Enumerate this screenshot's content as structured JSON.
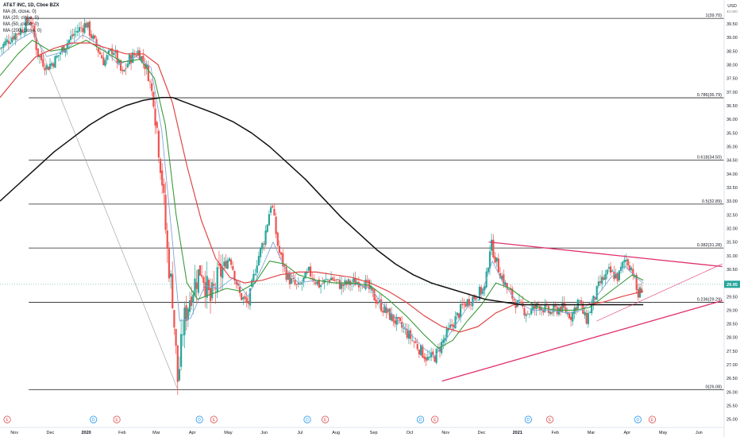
{
  "legend": {
    "title": "AT&T INC, 1D, Cboe BZX",
    "ma8": "MA (8, close, 0)",
    "ma20": "MA (20, close, 0)",
    "ma50": "MA (50, close, 0)",
    "ma200": "MA (200, close, 0)"
  },
  "axis": {
    "currency": "USD",
    "top_value": "40.000",
    "last_price": "29.95"
  },
  "colors": {
    "up": "#26a69a",
    "down": "#ef5350",
    "ma8": "#7fa6d9",
    "ma20": "#3a9a3a",
    "ma50": "#e04545",
    "ma200": "#111111",
    "triangle": "#e0306e",
    "fib": "#222222",
    "last_price_bg": "#26a69a"
  },
  "chart_data": {
    "type": "line",
    "title": "AT&T INC, 1D, Cboe BZX",
    "ylim": [
      24.7,
      40.2
    ],
    "y_ticks": [
      25.0,
      25.5,
      26.0,
      26.5,
      27.0,
      27.5,
      28.0,
      28.5,
      29.0,
      29.5,
      30.0,
      30.5,
      31.0,
      31.5,
      32.0,
      32.5,
      33.0,
      33.5,
      34.0,
      34.5,
      35.0,
      35.5,
      36.0,
      36.5,
      37.0,
      37.5,
      38.0,
      38.5,
      39.0,
      39.5,
      40.0
    ],
    "x_ticks": [
      {
        "label": "Nov",
        "x": 0.4
      },
      {
        "label": "Dec",
        "x": 1.4
      },
      {
        "label": "2020",
        "x": 2.4
      },
      {
        "label": "Feb",
        "x": 3.4
      },
      {
        "label": "Mar",
        "x": 4.35
      },
      {
        "label": "Apr",
        "x": 5.35
      },
      {
        "label": "May",
        "x": 6.35
      },
      {
        "label": "Jun",
        "x": 7.35
      },
      {
        "label": "Jul",
        "x": 8.35
      },
      {
        "label": "Aug",
        "x": 9.35
      },
      {
        "label": "Sep",
        "x": 10.4
      },
      {
        "label": "Oct",
        "x": 11.4
      },
      {
        "label": "Nov",
        "x": 12.4
      },
      {
        "label": "Dec",
        "x": 13.4
      },
      {
        "label": "2021",
        "x": 14.4
      },
      {
        "label": "Feb",
        "x": 15.45
      },
      {
        "label": "Mar",
        "x": 16.45
      },
      {
        "label": "Apr",
        "x": 17.45
      },
      {
        "label": "May",
        "x": 18.45
      },
      {
        "label": "Jun",
        "x": 19.45
      }
    ],
    "xlim": [
      0,
      20.15
    ],
    "fib_levels": [
      {
        "ratio": "1",
        "value": 39.7,
        "label": "1(39.70)"
      },
      {
        "ratio": "0.786",
        "value": 36.79,
        "label": "0.786(36.79)"
      },
      {
        "ratio": "0.618",
        "value": 34.5,
        "label": "0.618(34.50)"
      },
      {
        "ratio": "0.5",
        "value": 32.89,
        "label": "0.5(32.89)"
      },
      {
        "ratio": "0.382",
        "value": 31.28,
        "label": "0.382(31.28)"
      },
      {
        "ratio": "0.236",
        "value": 29.29,
        "label": "0.236(29.29)"
      },
      {
        "ratio": "0",
        "value": 26.08,
        "label": "0(26.08)"
      }
    ],
    "price_path": [
      [
        0.0,
        38.6
      ],
      [
        0.3,
        39.0
      ],
      [
        0.6,
        39.3
      ],
      [
        0.85,
        39.7
      ],
      [
        1.05,
        38.4
      ],
      [
        1.3,
        37.9
      ],
      [
        1.55,
        38.2
      ],
      [
        1.8,
        38.7
      ],
      [
        2.1,
        39.2
      ],
      [
        2.4,
        39.5
      ],
      [
        2.6,
        38.9
      ],
      [
        2.9,
        38.1
      ],
      [
        3.15,
        38.6
      ],
      [
        3.4,
        37.6
      ],
      [
        3.6,
        38.2
      ],
      [
        3.85,
        38.5
      ],
      [
        4.1,
        37.8
      ],
      [
        4.3,
        36.5
      ],
      [
        4.5,
        34.0
      ],
      [
        4.65,
        31.2
      ],
      [
        4.8,
        29.5
      ],
      [
        4.95,
        26.3
      ],
      [
        5.1,
        28.5
      ],
      [
        5.3,
        29.6
      ],
      [
        5.6,
        30.6
      ],
      [
        5.85,
        29.3
      ],
      [
        6.1,
        30.3
      ],
      [
        6.4,
        31.0
      ],
      [
        6.65,
        29.6
      ],
      [
        6.9,
        29.2
      ],
      [
        7.15,
        30.8
      ],
      [
        7.35,
        31.6
      ],
      [
        7.55,
        33.0
      ],
      [
        7.75,
        31.2
      ],
      [
        8.0,
        30.2
      ],
      [
        8.3,
        29.8
      ],
      [
        8.6,
        30.4
      ],
      [
        8.9,
        29.9
      ],
      [
        9.2,
        30.2
      ],
      [
        9.5,
        29.9
      ],
      [
        9.8,
        30.0
      ],
      [
        10.1,
        30.1
      ],
      [
        10.4,
        29.5
      ],
      [
        10.7,
        29.0
      ],
      [
        11.0,
        28.6
      ],
      [
        11.3,
        28.2
      ],
      [
        11.6,
        27.7
      ],
      [
        11.9,
        27.2
      ],
      [
        12.1,
        27.3
      ],
      [
        12.3,
        27.8
      ],
      [
        12.6,
        28.5
      ],
      [
        12.9,
        29.2
      ],
      [
        13.2,
        29.5
      ],
      [
        13.5,
        29.8
      ],
      [
        13.65,
        31.5
      ],
      [
        13.85,
        30.6
      ],
      [
        14.1,
        29.8
      ],
      [
        14.4,
        29.2
      ],
      [
        14.7,
        28.9
      ],
      [
        15.0,
        29.2
      ],
      [
        15.3,
        28.9
      ],
      [
        15.6,
        29.1
      ],
      [
        15.9,
        28.8
      ],
      [
        16.1,
        29.4
      ],
      [
        16.3,
        28.6
      ],
      [
        16.5,
        29.3
      ],
      [
        16.7,
        30.0
      ],
      [
        16.95,
        30.4
      ],
      [
        17.2,
        30.2
      ],
      [
        17.4,
        30.9
      ],
      [
        17.6,
        30.5
      ],
      [
        17.75,
        29.5
      ],
      [
        17.9,
        29.95
      ]
    ],
    "series": [
      {
        "name": "MA (8, close, 0)",
        "values": [
          [
            0,
            38.3
          ],
          [
            0.5,
            38.9
          ],
          [
            0.9,
            39.2
          ],
          [
            1.3,
            38.3
          ],
          [
            1.8,
            38.5
          ],
          [
            2.3,
            39.1
          ],
          [
            2.8,
            38.7
          ],
          [
            3.3,
            38.0
          ],
          [
            3.8,
            38.3
          ],
          [
            4.2,
            37.9
          ],
          [
            4.5,
            35.6
          ],
          [
            4.8,
            31.5
          ],
          [
            5.0,
            28.6
          ],
          [
            5.3,
            28.7
          ],
          [
            5.7,
            29.9
          ],
          [
            6.1,
            29.8
          ],
          [
            6.5,
            30.2
          ],
          [
            6.9,
            29.5
          ],
          [
            7.3,
            30.6
          ],
          [
            7.6,
            31.5
          ],
          [
            7.9,
            30.6
          ],
          [
            8.3,
            30.0
          ],
          [
            8.8,
            30.1
          ],
          [
            9.3,
            30.0
          ],
          [
            9.8,
            30.0
          ],
          [
            10.3,
            29.8
          ],
          [
            10.8,
            29.0
          ],
          [
            11.3,
            28.3
          ],
          [
            11.8,
            27.6
          ],
          [
            12.1,
            27.3
          ],
          [
            12.5,
            28.1
          ],
          [
            13.0,
            29.1
          ],
          [
            13.4,
            29.6
          ],
          [
            13.7,
            30.8
          ],
          [
            14.0,
            30.0
          ],
          [
            14.4,
            29.3
          ],
          [
            14.8,
            29.0
          ],
          [
            15.3,
            29.0
          ],
          [
            15.8,
            28.9
          ],
          [
            16.2,
            29.0
          ],
          [
            16.6,
            29.5
          ],
          [
            17.0,
            30.2
          ],
          [
            17.4,
            30.6
          ],
          [
            17.7,
            30.2
          ],
          [
            17.9,
            30.0
          ]
        ]
      },
      {
        "name": "MA (20, close, 0)",
        "values": [
          [
            0,
            37.6
          ],
          [
            0.5,
            38.4
          ],
          [
            0.9,
            38.9
          ],
          [
            1.4,
            38.5
          ],
          [
            1.9,
            38.6
          ],
          [
            2.4,
            38.9
          ],
          [
            2.9,
            38.5
          ],
          [
            3.4,
            38.1
          ],
          [
            3.9,
            38.2
          ],
          [
            4.3,
            37.5
          ],
          [
            4.6,
            35.8
          ],
          [
            4.9,
            32.5
          ],
          [
            5.2,
            30.0
          ],
          [
            5.5,
            29.4
          ],
          [
            5.9,
            29.6
          ],
          [
            6.3,
            29.8
          ],
          [
            6.7,
            29.7
          ],
          [
            7.1,
            30.0
          ],
          [
            7.5,
            30.8
          ],
          [
            7.9,
            30.7
          ],
          [
            8.3,
            30.3
          ],
          [
            8.8,
            30.1
          ],
          [
            9.3,
            30.0
          ],
          [
            9.8,
            30.0
          ],
          [
            10.3,
            29.9
          ],
          [
            10.8,
            29.4
          ],
          [
            11.3,
            28.8
          ],
          [
            11.8,
            28.1
          ],
          [
            12.2,
            27.6
          ],
          [
            12.6,
            27.9
          ],
          [
            13.0,
            28.6
          ],
          [
            13.4,
            29.2
          ],
          [
            13.8,
            30.0
          ],
          [
            14.2,
            29.8
          ],
          [
            14.6,
            29.4
          ],
          [
            15.0,
            29.1
          ],
          [
            15.5,
            29.0
          ],
          [
            16.0,
            29.0
          ],
          [
            16.4,
            29.1
          ],
          [
            16.8,
            29.5
          ],
          [
            17.2,
            29.9
          ],
          [
            17.6,
            30.3
          ],
          [
            17.9,
            30.1
          ]
        ]
      },
      {
        "name": "MA (50, close, 0)",
        "values": [
          [
            0,
            36.8
          ],
          [
            0.5,
            37.6
          ],
          [
            1.0,
            38.3
          ],
          [
            1.5,
            38.6
          ],
          [
            2.0,
            38.8
          ],
          [
            2.5,
            38.8
          ],
          [
            3.0,
            38.6
          ],
          [
            3.5,
            38.4
          ],
          [
            4.0,
            38.4
          ],
          [
            4.4,
            38.0
          ],
          [
            4.8,
            36.6
          ],
          [
            5.2,
            34.3
          ],
          [
            5.6,
            32.3
          ],
          [
            6.0,
            30.9
          ],
          [
            6.4,
            30.2
          ],
          [
            6.8,
            30.0
          ],
          [
            7.3,
            30.1
          ],
          [
            7.8,
            30.3
          ],
          [
            8.3,
            30.4
          ],
          [
            8.8,
            30.4
          ],
          [
            9.3,
            30.3
          ],
          [
            9.8,
            30.2
          ],
          [
            10.3,
            30.0
          ],
          [
            10.8,
            29.7
          ],
          [
            11.3,
            29.3
          ],
          [
            11.8,
            28.8
          ],
          [
            12.3,
            28.4
          ],
          [
            12.8,
            28.2
          ],
          [
            13.3,
            28.4
          ],
          [
            13.8,
            28.9
          ],
          [
            14.3,
            29.2
          ],
          [
            14.8,
            29.2
          ],
          [
            15.3,
            29.2
          ],
          [
            15.8,
            29.2
          ],
          [
            16.3,
            29.2
          ],
          [
            16.8,
            29.3
          ],
          [
            17.3,
            29.5
          ],
          [
            17.9,
            29.7
          ]
        ]
      },
      {
        "name": "MA (200, close, 0)",
        "values": [
          [
            0,
            33.0
          ],
          [
            0.5,
            33.6
          ],
          [
            1.0,
            34.2
          ],
          [
            1.5,
            34.8
          ],
          [
            2.0,
            35.3
          ],
          [
            2.5,
            35.8
          ],
          [
            3.0,
            36.2
          ],
          [
            3.5,
            36.5
          ],
          [
            4.0,
            36.7
          ],
          [
            4.5,
            36.8
          ],
          [
            4.8,
            36.8
          ],
          [
            5.2,
            36.6
          ],
          [
            5.6,
            36.4
          ],
          [
            6.0,
            36.2
          ],
          [
            6.5,
            35.9
          ],
          [
            7.0,
            35.5
          ],
          [
            7.5,
            35.0
          ],
          [
            8.0,
            34.4
          ],
          [
            8.5,
            33.8
          ],
          [
            9.0,
            33.1
          ],
          [
            9.5,
            32.4
          ],
          [
            10.0,
            31.8
          ],
          [
            10.5,
            31.2
          ],
          [
            11.0,
            30.7
          ],
          [
            11.5,
            30.3
          ],
          [
            12.0,
            30.0
          ],
          [
            12.5,
            29.8
          ],
          [
            13.0,
            29.6
          ],
          [
            13.5,
            29.4
          ],
          [
            14.0,
            29.3
          ],
          [
            14.5,
            29.2
          ],
          [
            15.0,
            29.2
          ],
          [
            15.5,
            29.2
          ],
          [
            16.0,
            29.2
          ],
          [
            16.5,
            29.2
          ],
          [
            17.0,
            29.2
          ],
          [
            17.5,
            29.2
          ],
          [
            17.9,
            29.2
          ]
        ]
      }
    ],
    "triangle_lines": [
      {
        "name": "upper",
        "from": [
          13.6,
          31.5
        ],
        "to": [
          20.1,
          30.6
        ]
      },
      {
        "name": "lower",
        "from": [
          12.3,
          26.4
        ],
        "to": [
          20.1,
          29.35
        ]
      },
      {
        "name": "thin",
        "from": [
          16.6,
          28.6
        ],
        "to": [
          20.1,
          30.7
        ]
      }
    ],
    "fib_anchor_line": {
      "from": [
        0.8,
        39.7
      ],
      "to": [
        4.95,
        26.08
      ]
    },
    "event_markers": [
      {
        "label": "E",
        "x": 0.2,
        "color": "#e05050"
      },
      {
        "label": "D",
        "x": 2.6,
        "color": "#2196f3"
      },
      {
        "label": "E",
        "x": 3.25,
        "color": "#e05050"
      },
      {
        "label": "D",
        "x": 5.55,
        "color": "#2196f3"
      },
      {
        "label": "E",
        "x": 5.95,
        "color": "#e05050"
      },
      {
        "label": "D",
        "x": 8.55,
        "color": "#2196f3"
      },
      {
        "label": "E",
        "x": 9.05,
        "color": "#e05050"
      },
      {
        "label": "D",
        "x": 11.7,
        "color": "#2196f3"
      },
      {
        "label": "E",
        "x": 12.1,
        "color": "#e05050"
      },
      {
        "label": "D",
        "x": 14.7,
        "color": "#2196f3"
      },
      {
        "label": "E",
        "x": 15.3,
        "color": "#e05050"
      },
      {
        "label": "D",
        "x": 17.75,
        "color": "#2196f3"
      },
      {
        "label": "E",
        "x": 18.15,
        "color": "#e05050"
      }
    ]
  }
}
